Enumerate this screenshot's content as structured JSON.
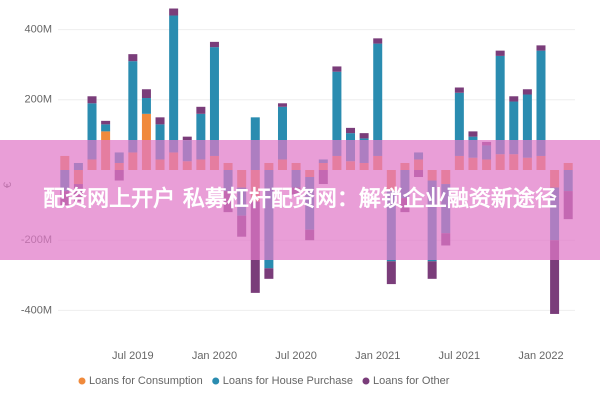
{
  "chart_data": {
    "type": "bar",
    "stacked": true,
    "y_label": "€",
    "categories": [
      null,
      null,
      null,
      null,
      null,
      "Jul 2019",
      null,
      null,
      null,
      null,
      null,
      "Jan 2020",
      null,
      null,
      null,
      null,
      null,
      "Jul 2020",
      null,
      null,
      null,
      null,
      null,
      "Jan 2021",
      null,
      null,
      null,
      null,
      null,
      "Jul 2021",
      null,
      null,
      null,
      null,
      null,
      "Jan 2022",
      null,
      null
    ],
    "series": [
      {
        "name": "Loans for Consumption",
        "color": "#f08a3c",
        "values": [
          40,
          -40,
          30,
          110,
          20,
          50,
          160,
          30,
          50,
          25,
          30,
          40,
          20,
          -50,
          -90,
          20,
          30,
          20,
          -20,
          20,
          40,
          25,
          20,
          40,
          -60,
          20,
          30,
          -30,
          -40,
          40,
          35,
          30,
          45,
          45,
          35,
          40,
          -50,
          20
        ]
      },
      {
        "name": "Loans for House Purchase",
        "color": "#2a8cb0",
        "values": [
          -60,
          20,
          160,
          20,
          30,
          260,
          45,
          100,
          390,
          60,
          130,
          310,
          -60,
          -80,
          150,
          -280,
          150,
          -50,
          -150,
          10,
          240,
          80,
          70,
          320,
          -200,
          -80,
          20,
          -230,
          -140,
          180,
          60,
          40,
          280,
          150,
          180,
          300,
          -150,
          -60
        ]
      },
      {
        "name": "Loans for Other",
        "color": "#7a3d7a",
        "values": [
          -40,
          -50,
          20,
          10,
          -30,
          20,
          25,
          20,
          20,
          10,
          20,
          15,
          -60,
          -60,
          -260,
          -30,
          10,
          -20,
          -30,
          -40,
          15,
          15,
          15,
          15,
          -65,
          -40,
          -20,
          -50,
          -35,
          15,
          15,
          10,
          15,
          15,
          15,
          15,
          -210,
          -80
        ]
      }
    ],
    "ylim": [
      -470,
      470
    ],
    "yticks": [
      {
        "value": -400,
        "label": "-400M"
      },
      {
        "value": -200,
        "label": "-200M"
      },
      {
        "value": 200,
        "label": "200M"
      },
      {
        "value": 400,
        "label": "400M"
      }
    ],
    "grid": true,
    "legend": "bottom"
  },
  "banner": {
    "text": "配资网上开户 私募杠杆配资网：解锁企业融资新途径"
  }
}
